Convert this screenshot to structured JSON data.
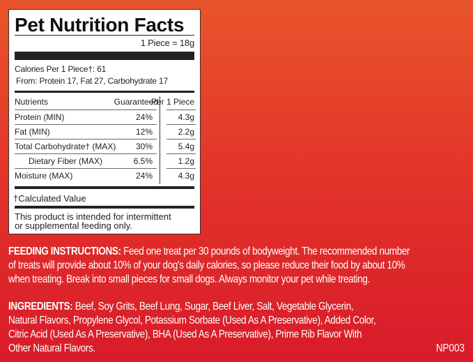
{
  "panel": {
    "title": "Pet Nutrition Facts",
    "serving": "1 Piece = 18g",
    "calories": "Calories Per 1 Piece†: 61",
    "calories_from": "From: Protein 17, Fat 27, Carbohydrate 17",
    "headers": [
      "Nutrients",
      "Guaranteed",
      "Per 1 Piece"
    ],
    "rows": [
      {
        "name": "Protein (MIN)",
        "guaranteed": "24%",
        "per_piece": "4.3g"
      },
      {
        "name": "Fat (MIN)",
        "guaranteed": "12%",
        "per_piece": "2.2g"
      },
      {
        "name": "Total Carbohydrate† (MAX)",
        "guaranteed": "30%",
        "per_piece": "5.4g"
      },
      {
        "name": "Dietary Fiber (MAX)",
        "guaranteed": "6.5%",
        "per_piece": "1.2g"
      },
      {
        "name": "Moisture (MAX)",
        "guaranteed": "24%",
        "per_piece": "4.3g"
      }
    ],
    "footnote": "†Calculated Value",
    "note_lines": [
      "This product is intended for intermittent",
      "or supplemental feeding only."
    ]
  },
  "feeding": {
    "label": "FEEDING INSTRUCTIONS:",
    "lines": [
      " Feed one treat per 30 pounds of bodyweight. The recommended number",
      "of treats will provide about 10% of your dog's daily calories, so please reduce their food by about 10%",
      "when treating. Break into small pieces for small dogs. Always monitor your pet while treating."
    ]
  },
  "ingredients": {
    "label": "INGREDIENTS:",
    "lines": [
      " Beef, Soy Grits, Beef Lung, Sugar, Beef Liver, Salt, Vegetable Glycerin,",
      "Natural Flavors, Propylene Glycol, Potassium Sorbate (Used As A Preservative), Added Color,",
      "Citric Acid (Used As A Preservative), BHA (Used As A Preservative), Prime Rib Flavor With",
      "Other Natural Flavors."
    ],
    "code": "NP003"
  },
  "colors": {
    "background_top": "#e9552a",
    "background_bottom": "#d81b2a",
    "panel": "#ffffff"
  }
}
